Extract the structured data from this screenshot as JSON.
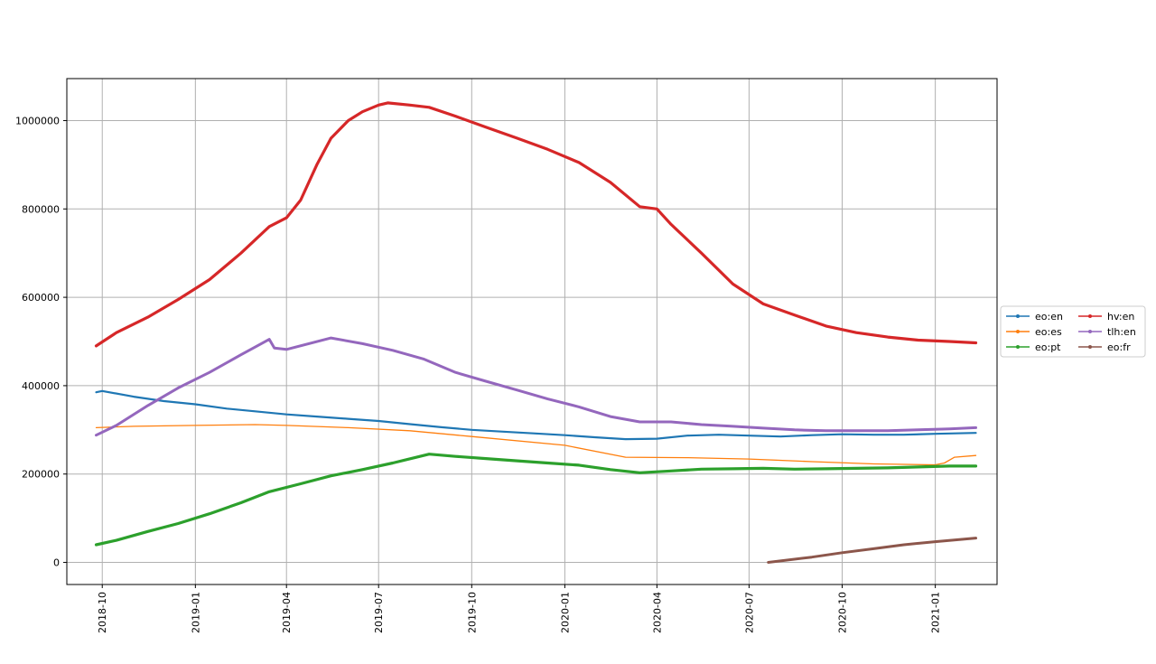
{
  "chart_data": {
    "type": "line",
    "title": "",
    "xlabel": "",
    "ylabel": "",
    "x_axis": {
      "type": "date",
      "min": "2018-08-27",
      "max": "2021-03-03"
    },
    "ylim": [
      -50000,
      1095000
    ],
    "grid": true,
    "legend": {
      "placement": "right",
      "columns": 2
    },
    "x_ticks": [
      "2018-10",
      "2019-01",
      "2019-04",
      "2019-07",
      "2019-10",
      "2020-01",
      "2020-04",
      "2020-07",
      "2020-10",
      "2021-01"
    ],
    "y_ticks": [
      0,
      200000,
      400000,
      600000,
      800000,
      1000000
    ],
    "series": [
      {
        "name": "eo:en",
        "color": "#1f77b4",
        "points": [
          [
            "2018-09-25",
            385000
          ],
          [
            "2018-10-01",
            388000
          ],
          [
            "2018-11-01",
            375000
          ],
          [
            "2018-12-01",
            365000
          ],
          [
            "2019-01-01",
            358000
          ],
          [
            "2019-02-01",
            348000
          ],
          [
            "2019-03-01",
            342000
          ],
          [
            "2019-04-01",
            335000
          ],
          [
            "2019-05-01",
            330000
          ],
          [
            "2019-06-01",
            325000
          ],
          [
            "2019-07-01",
            320000
          ],
          [
            "2019-08-01",
            313000
          ],
          [
            "2019-09-01",
            306000
          ],
          [
            "2019-10-01",
            300000
          ],
          [
            "2019-11-01",
            296000
          ],
          [
            "2019-12-01",
            292000
          ],
          [
            "2020-01-01",
            288000
          ],
          [
            "2020-02-01",
            283000
          ],
          [
            "2020-03-01",
            279000
          ],
          [
            "2020-04-01",
            280000
          ],
          [
            "2020-05-01",
            287000
          ],
          [
            "2020-06-01",
            289000
          ],
          [
            "2020-07-01",
            287000
          ],
          [
            "2020-08-01",
            285000
          ],
          [
            "2020-09-01",
            288000
          ],
          [
            "2020-10-01",
            290000
          ],
          [
            "2020-11-01",
            289000
          ],
          [
            "2020-12-01",
            289000
          ],
          [
            "2021-01-01",
            291000
          ],
          [
            "2021-02-10",
            293000
          ]
        ]
      },
      {
        "name": "eo:es",
        "color": "#ff7f0e",
        "points": [
          [
            "2018-09-25",
            305000
          ],
          [
            "2018-11-01",
            308000
          ],
          [
            "2019-01-01",
            310000
          ],
          [
            "2019-03-01",
            312000
          ],
          [
            "2019-04-01",
            310000
          ],
          [
            "2019-06-01",
            305000
          ],
          [
            "2019-08-01",
            298000
          ],
          [
            "2019-10-01",
            285000
          ],
          [
            "2020-01-01",
            265000
          ],
          [
            "2020-03-01",
            238000
          ],
          [
            "2020-05-01",
            237000
          ],
          [
            "2020-07-01",
            234000
          ],
          [
            "2020-09-01",
            228000
          ],
          [
            "2020-11-01",
            223000
          ],
          [
            "2021-01-01",
            221000
          ],
          [
            "2021-01-10",
            225000
          ],
          [
            "2021-01-20",
            238000
          ],
          [
            "2021-02-10",
            242000
          ]
        ]
      },
      {
        "name": "eo:pt",
        "color": "#2ca02c",
        "points": [
          [
            "2018-09-25",
            40000
          ],
          [
            "2018-10-15",
            50000
          ],
          [
            "2018-11-15",
            70000
          ],
          [
            "2018-12-15",
            88000
          ],
          [
            "2019-01-15",
            110000
          ],
          [
            "2019-02-15",
            135000
          ],
          [
            "2019-03-15",
            160000
          ],
          [
            "2019-04-15",
            178000
          ],
          [
            "2019-05-15",
            196000
          ],
          [
            "2019-06-15",
            210000
          ],
          [
            "2019-07-15",
            225000
          ],
          [
            "2019-08-20",
            245000
          ],
          [
            "2019-09-15",
            240000
          ],
          [
            "2019-10-15",
            235000
          ],
          [
            "2019-11-15",
            230000
          ],
          [
            "2019-12-15",
            225000
          ],
          [
            "2020-01-15",
            220000
          ],
          [
            "2020-02-15",
            210000
          ],
          [
            "2020-03-15",
            203000
          ],
          [
            "2020-04-15",
            207000
          ],
          [
            "2020-05-15",
            211000
          ],
          [
            "2020-06-15",
            212000
          ],
          [
            "2020-07-15",
            213000
          ],
          [
            "2020-08-15",
            211000
          ],
          [
            "2020-09-15",
            212000
          ],
          [
            "2020-10-15",
            213000
          ],
          [
            "2020-11-15",
            214000
          ],
          [
            "2020-12-15",
            216000
          ],
          [
            "2021-01-15",
            218000
          ],
          [
            "2021-02-10",
            218000
          ]
        ]
      },
      {
        "name": "hv:en",
        "color": "#d62728",
        "points": [
          [
            "2018-09-25",
            490000
          ],
          [
            "2018-10-15",
            520000
          ],
          [
            "2018-11-15",
            555000
          ],
          [
            "2018-12-15",
            595000
          ],
          [
            "2019-01-15",
            640000
          ],
          [
            "2019-02-15",
            700000
          ],
          [
            "2019-03-15",
            760000
          ],
          [
            "2019-04-01",
            780000
          ],
          [
            "2019-04-15",
            820000
          ],
          [
            "2019-05-01",
            900000
          ],
          [
            "2019-05-15",
            960000
          ],
          [
            "2019-06-01",
            1000000
          ],
          [
            "2019-06-15",
            1020000
          ],
          [
            "2019-07-01",
            1035000
          ],
          [
            "2019-07-10",
            1040000
          ],
          [
            "2019-08-01",
            1035000
          ],
          [
            "2019-08-20",
            1030000
          ],
          [
            "2019-09-15",
            1010000
          ],
          [
            "2019-10-15",
            985000
          ],
          [
            "2019-11-15",
            960000
          ],
          [
            "2019-12-15",
            935000
          ],
          [
            "2020-01-15",
            905000
          ],
          [
            "2020-02-15",
            860000
          ],
          [
            "2020-03-15",
            805000
          ],
          [
            "2020-04-01",
            800000
          ],
          [
            "2020-04-15",
            765000
          ],
          [
            "2020-05-15",
            700000
          ],
          [
            "2020-06-15",
            630000
          ],
          [
            "2020-07-15",
            585000
          ],
          [
            "2020-08-15",
            560000
          ],
          [
            "2020-09-15",
            535000
          ],
          [
            "2020-10-15",
            520000
          ],
          [
            "2020-11-15",
            510000
          ],
          [
            "2020-12-15",
            503000
          ],
          [
            "2021-01-15",
            500000
          ],
          [
            "2021-02-10",
            497000
          ]
        ]
      },
      {
        "name": "tlh:en",
        "color": "#9467bd",
        "points": [
          [
            "2018-09-25",
            288000
          ],
          [
            "2018-10-15",
            310000
          ],
          [
            "2018-11-15",
            355000
          ],
          [
            "2018-12-15",
            395000
          ],
          [
            "2019-01-15",
            430000
          ],
          [
            "2019-02-15",
            470000
          ],
          [
            "2019-03-15",
            505000
          ],
          [
            "2019-03-20",
            485000
          ],
          [
            "2019-04-01",
            482000
          ],
          [
            "2019-05-15",
            508000
          ],
          [
            "2019-06-15",
            495000
          ],
          [
            "2019-07-15",
            480000
          ],
          [
            "2019-08-15",
            460000
          ],
          [
            "2019-09-15",
            430000
          ],
          [
            "2019-10-15",
            410000
          ],
          [
            "2019-11-15",
            390000
          ],
          [
            "2019-12-15",
            370000
          ],
          [
            "2020-01-15",
            352000
          ],
          [
            "2020-02-15",
            330000
          ],
          [
            "2020-03-15",
            318000
          ],
          [
            "2020-04-15",
            318000
          ],
          [
            "2020-05-15",
            312000
          ],
          [
            "2020-06-15",
            308000
          ],
          [
            "2020-07-15",
            304000
          ],
          [
            "2020-08-15",
            300000
          ],
          [
            "2020-09-15",
            298000
          ],
          [
            "2020-10-15",
            298000
          ],
          [
            "2020-11-15",
            298000
          ],
          [
            "2020-12-15",
            300000
          ],
          [
            "2021-01-15",
            302000
          ],
          [
            "2021-02-10",
            305000
          ]
        ]
      },
      {
        "name": "eo:fr",
        "color": "#8c564b",
        "points": [
          [
            "2020-07-20",
            0
          ],
          [
            "2020-09-01",
            12000
          ],
          [
            "2020-10-01",
            22000
          ],
          [
            "2020-11-01",
            31000
          ],
          [
            "2020-12-01",
            40000
          ],
          [
            "2021-01-01",
            47000
          ],
          [
            "2021-02-10",
            55000
          ]
        ]
      }
    ]
  }
}
